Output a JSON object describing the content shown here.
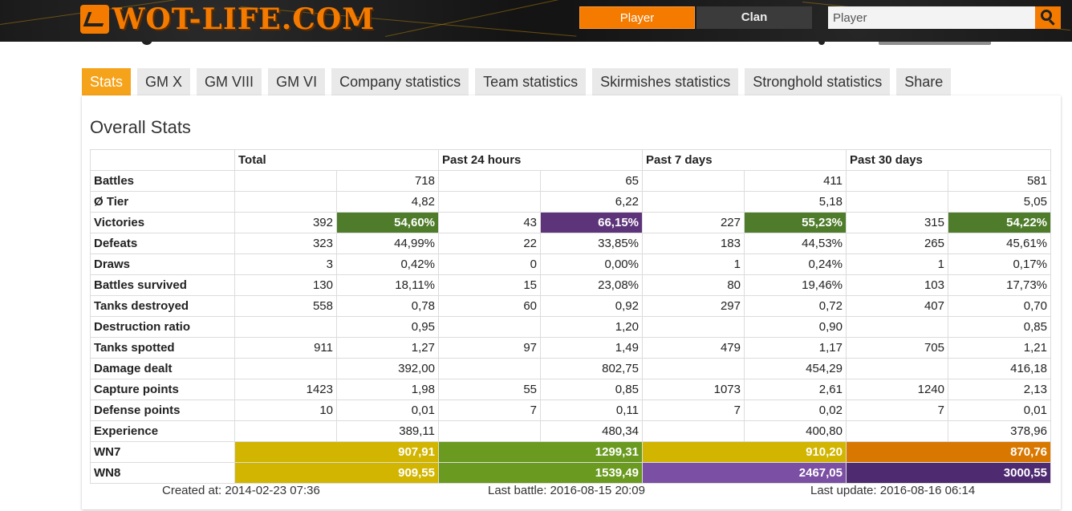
{
  "header": {
    "logo_text": "WOT-LIFE.COM",
    "player_label": "Player",
    "clan_label": "Clan",
    "search_placeholder": "Player",
    "search_icon": "search-icon",
    "accent": "#f47a00"
  },
  "tabs": [
    "Stats",
    "GM X",
    "GM VIII",
    "GM VI",
    "Company statistics",
    "Team statistics",
    "Skirmishes statistics",
    "Stronghold statistics",
    "Share"
  ],
  "panel": {
    "title": "Overall Stats",
    "columns": [
      "Total",
      "Past 24 hours",
      "Past 7 days",
      "Past 30 days"
    ],
    "rows": [
      {
        "label": "Battles",
        "cells": [
          [
            "",
            "718"
          ],
          [
            "",
            "65"
          ],
          [
            "",
            "411"
          ],
          [
            "",
            "581"
          ]
        ]
      },
      {
        "label": "Ø Tier",
        "cells": [
          [
            "",
            "4,82"
          ],
          [
            "",
            "6,22"
          ],
          [
            "",
            "5,18"
          ],
          [
            "",
            "5,05"
          ]
        ]
      },
      {
        "label": "Victories",
        "cells": [
          [
            "392",
            "54,60%"
          ],
          [
            "43",
            "66,15%"
          ],
          [
            "227",
            "55,23%"
          ],
          [
            "315",
            "54,22%"
          ]
        ]
      },
      {
        "label": "Defeats",
        "cells": [
          [
            "323",
            "44,99%"
          ],
          [
            "22",
            "33,85%"
          ],
          [
            "183",
            "44,53%"
          ],
          [
            "265",
            "45,61%"
          ]
        ]
      },
      {
        "label": "Draws",
        "cells": [
          [
            "3",
            "0,42%"
          ],
          [
            "0",
            "0,00%"
          ],
          [
            "1",
            "0,24%"
          ],
          [
            "1",
            "0,17%"
          ]
        ]
      },
      {
        "label": "Battles survived",
        "cells": [
          [
            "130",
            "18,11%"
          ],
          [
            "15",
            "23,08%"
          ],
          [
            "80",
            "19,46%"
          ],
          [
            "103",
            "17,73%"
          ]
        ]
      },
      {
        "label": "Tanks destroyed",
        "cells": [
          [
            "558",
            "0,78"
          ],
          [
            "60",
            "0,92"
          ],
          [
            "297",
            "0,72"
          ],
          [
            "407",
            "0,70"
          ]
        ]
      },
      {
        "label": "Destruction ratio",
        "cells": [
          [
            "",
            "0,95"
          ],
          [
            "",
            "1,20"
          ],
          [
            "",
            "0,90"
          ],
          [
            "",
            "0,85"
          ]
        ]
      },
      {
        "label": "Tanks spotted",
        "cells": [
          [
            "911",
            "1,27"
          ],
          [
            "97",
            "1,49"
          ],
          [
            "479",
            "1,17"
          ],
          [
            "705",
            "1,21"
          ]
        ]
      },
      {
        "label": "Damage dealt",
        "cells": [
          [
            "",
            "392,00"
          ],
          [
            "",
            "802,75"
          ],
          [
            "",
            "454,29"
          ],
          [
            "",
            "416,18"
          ]
        ]
      },
      {
        "label": "Capture points",
        "cells": [
          [
            "1423",
            "1,98"
          ],
          [
            "55",
            "0,85"
          ],
          [
            "1073",
            "2,61"
          ],
          [
            "1240",
            "2,13"
          ]
        ]
      },
      {
        "label": "Defense points",
        "cells": [
          [
            "10",
            "0,01"
          ],
          [
            "7",
            "0,11"
          ],
          [
            "7",
            "0,02"
          ],
          [
            "7",
            "0,01"
          ]
        ]
      },
      {
        "label": "Experience",
        "cells": [
          [
            "",
            "389,11"
          ],
          [
            "",
            "480,34"
          ],
          [
            "",
            "400,80"
          ],
          [
            "",
            "378,96"
          ]
        ]
      }
    ],
    "victory_colors": [
      "#4f7c2b",
      "#5d347a",
      "#4f7c2b",
      "#4f7c2b"
    ],
    "rating_rows": [
      {
        "label": "WN7",
        "values": [
          "907,91",
          "1299,31",
          "910,20",
          "870,76"
        ],
        "colors": [
          "#d1b500",
          "#6a9a1f",
          "#d1b500",
          "#d97800"
        ]
      },
      {
        "label": "WN8",
        "values": [
          "909,55",
          "1539,49",
          "2467,05",
          "3000,55"
        ],
        "colors": [
          "#d1b500",
          "#6a9a1f",
          "#7b4fa3",
          "#4e2a70"
        ]
      }
    ]
  },
  "footer": {
    "created": "Created at: 2014-02-23 07:36",
    "last_battle": "Last battle: 2016-08-15 20:09",
    "last_update": "Last update: 2016-08-16 06:14"
  }
}
